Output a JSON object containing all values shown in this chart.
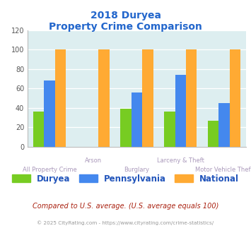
{
  "title_line1": "2018 Duryea",
  "title_line2": "Property Crime Comparison",
  "categories": [
    "All Property Crime",
    "Arson",
    "Burglary",
    "Larceny & Theft",
    "Motor Vehicle Theft"
  ],
  "cat_row1": [
    "",
    "Arson",
    "",
    "Larceny & Theft",
    ""
  ],
  "cat_row2": [
    "All Property Crime",
    "",
    "Burglary",
    "",
    "Motor Vehicle Theft"
  ],
  "duryea": [
    36,
    0,
    39,
    36,
    27
  ],
  "pennsylvania": [
    68,
    0,
    56,
    74,
    45
  ],
  "national": [
    100,
    100,
    100,
    100,
    100
  ],
  "duryea_color": "#77cc22",
  "pennsylvania_color": "#4488ee",
  "national_color": "#ffaa33",
  "ylim": [
    0,
    120
  ],
  "yticks": [
    0,
    20,
    40,
    60,
    80,
    100,
    120
  ],
  "legend_labels": [
    "Duryea",
    "Pennsylvania",
    "National"
  ],
  "footnote1": "Compared to U.S. average. (U.S. average equals 100)",
  "footnote2": "© 2025 CityRating.com - https://www.cityrating.com/crime-statistics/",
  "title_color": "#2266cc",
  "axis_label_color": "#aa99bb",
  "plot_bg": "#ddeef0",
  "bar_width": 0.25,
  "footnote1_color": "#aa2211",
  "footnote2_color": "#999999",
  "legend_text_color": "#2255bb"
}
